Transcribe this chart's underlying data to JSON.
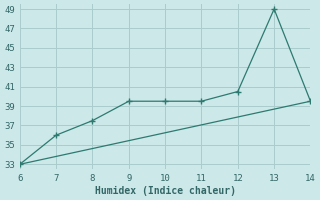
{
  "xlabel": "Humidex (Indice chaleur)",
  "background_color": "#cce8e8",
  "grid_color": "#aacccc",
  "line_color": "#2d7a70",
  "xlim": [
    6,
    14
  ],
  "ylim": [
    33,
    49
  ],
  "xticks": [
    6,
    7,
    8,
    9,
    10,
    11,
    12,
    13,
    14
  ],
  "yticks": [
    33,
    35,
    37,
    39,
    41,
    43,
    45,
    47,
    49
  ],
  "line1_x": [
    6,
    7,
    8,
    9,
    10,
    11,
    12,
    13,
    14
  ],
  "line1_y": [
    33,
    36,
    37.5,
    39.5,
    39.5,
    39.5,
    40.5,
    49,
    39.5
  ],
  "line2_x": [
    6,
    14
  ],
  "line2_y": [
    33,
    39.5
  ]
}
